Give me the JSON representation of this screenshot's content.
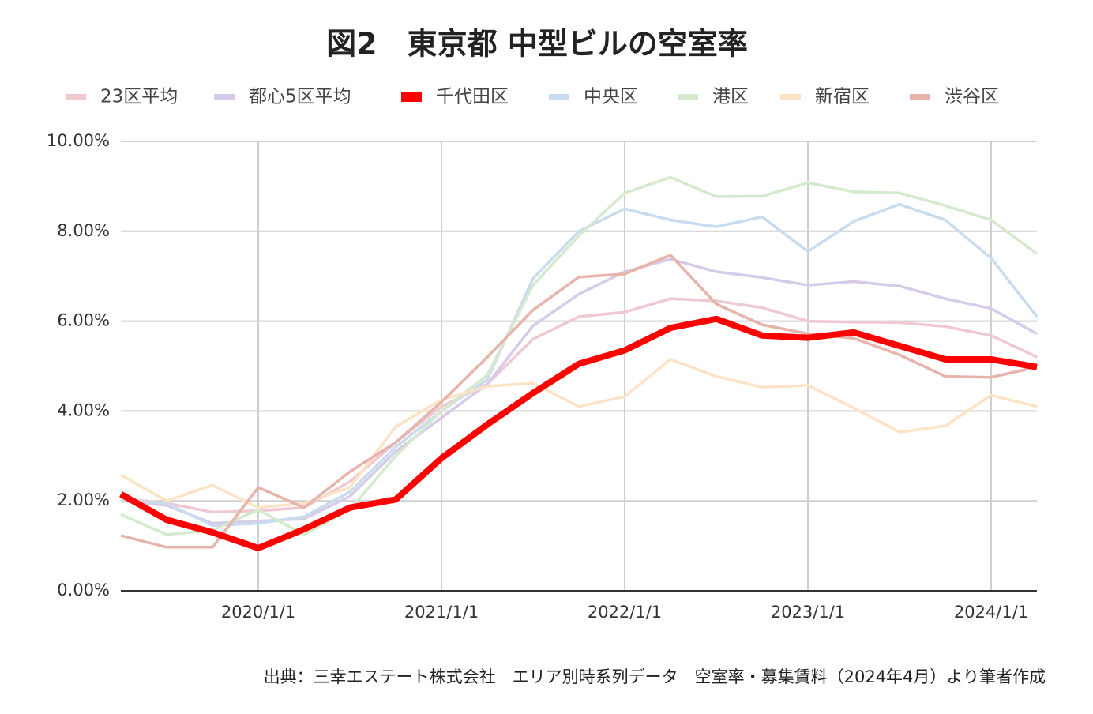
{
  "chart_data": {
    "type": "line",
    "title": "図2　東京都 中型ビルの空室率",
    "source": "出典：三幸エステート株式会社　エリア別時系列データ　空室率・募集賃料（2024年4月）より筆者作成",
    "x": [
      2019.25,
      2019.5,
      2019.75,
      2020,
      2020.25,
      2020.5,
      2020.75,
      2021,
      2021.25,
      2021.5,
      2021.75,
      2022,
      2022.25,
      2022.5,
      2022.75,
      2023,
      2023.25,
      2023.5,
      2023.75,
      2024,
      2024.25
    ],
    "xlim": [
      2019.25,
      2024.25
    ],
    "xticks": [
      {
        "value": 2020,
        "label": "2020/1/1"
      },
      {
        "value": 2021,
        "label": "2021/1/1"
      },
      {
        "value": 2022,
        "label": "2022/1/1"
      },
      {
        "value": 2023,
        "label": "2023/1/1"
      },
      {
        "value": 2024,
        "label": "2024/1/1"
      }
    ],
    "ylim": [
      0,
      10
    ],
    "yticks": [
      {
        "value": 0,
        "label": "0.00%"
      },
      {
        "value": 2,
        "label": "2.00%"
      },
      {
        "value": 4,
        "label": "4.00%"
      },
      {
        "value": 6,
        "label": "6.00%"
      },
      {
        "value": 8,
        "label": "8.00%"
      },
      {
        "value": 10,
        "label": "10.00%"
      }
    ],
    "grid": true,
    "legend": "top",
    "series": [
      {
        "name": "23区平均",
        "color": "#efc8d0",
        "values": [
          2.05,
          1.95,
          1.75,
          1.78,
          1.85,
          2.43,
          3.3,
          4.1,
          4.6,
          5.6,
          6.1,
          6.2,
          6.5,
          6.45,
          6.3,
          6.0,
          5.98,
          5.97,
          5.88,
          5.68,
          5.2
        ]
      },
      {
        "name": "都心5区平均",
        "color": "#d6cbe8",
        "values": [
          2.0,
          1.9,
          1.5,
          1.55,
          1.6,
          2.1,
          3.1,
          3.85,
          4.6,
          5.9,
          6.6,
          7.1,
          7.38,
          7.1,
          6.97,
          6.8,
          6.88,
          6.78,
          6.5,
          6.28,
          5.72
        ]
      },
      {
        "name": "千代田区",
        "color": "#ff0000",
        "values": [
          2.15,
          1.58,
          1.3,
          0.95,
          1.37,
          1.85,
          2.03,
          2.95,
          3.7,
          4.4,
          5.05,
          5.35,
          5.85,
          6.05,
          5.68,
          5.63,
          5.75,
          5.45,
          5.15,
          5.15,
          4.98
        ]
      },
      {
        "name": "中央区",
        "color": "#c9dcef",
        "values": [
          2.0,
          1.95,
          1.45,
          1.5,
          1.65,
          2.2,
          3.2,
          4.0,
          4.7,
          6.95,
          8.0,
          8.5,
          8.25,
          8.1,
          8.32,
          7.55,
          8.22,
          8.6,
          8.25,
          7.4,
          6.1
        ]
      },
      {
        "name": "港区",
        "color": "#d5e9cf",
        "values": [
          1.7,
          1.25,
          1.35,
          1.8,
          1.25,
          1.8,
          3.0,
          4.0,
          4.8,
          6.8,
          7.9,
          8.85,
          9.2,
          8.77,
          8.78,
          9.08,
          8.88,
          8.85,
          8.57,
          8.25,
          7.5
        ]
      },
      {
        "name": "新宿区",
        "color": "#fde3c5",
        "values": [
          2.58,
          2.0,
          2.35,
          1.85,
          1.95,
          2.3,
          3.65,
          4.25,
          4.55,
          4.62,
          4.1,
          4.32,
          5.15,
          4.77,
          4.53,
          4.57,
          4.07,
          3.53,
          3.67,
          4.35,
          4.1
        ]
      },
      {
        "name": "渋谷区",
        "color": "#e6b4aa",
        "values": [
          1.23,
          0.97,
          0.97,
          2.3,
          1.85,
          2.65,
          3.3,
          4.2,
          5.2,
          6.25,
          6.98,
          7.05,
          7.47,
          6.38,
          5.92,
          5.72,
          5.62,
          5.25,
          4.77,
          4.75,
          4.98
        ]
      }
    ]
  }
}
